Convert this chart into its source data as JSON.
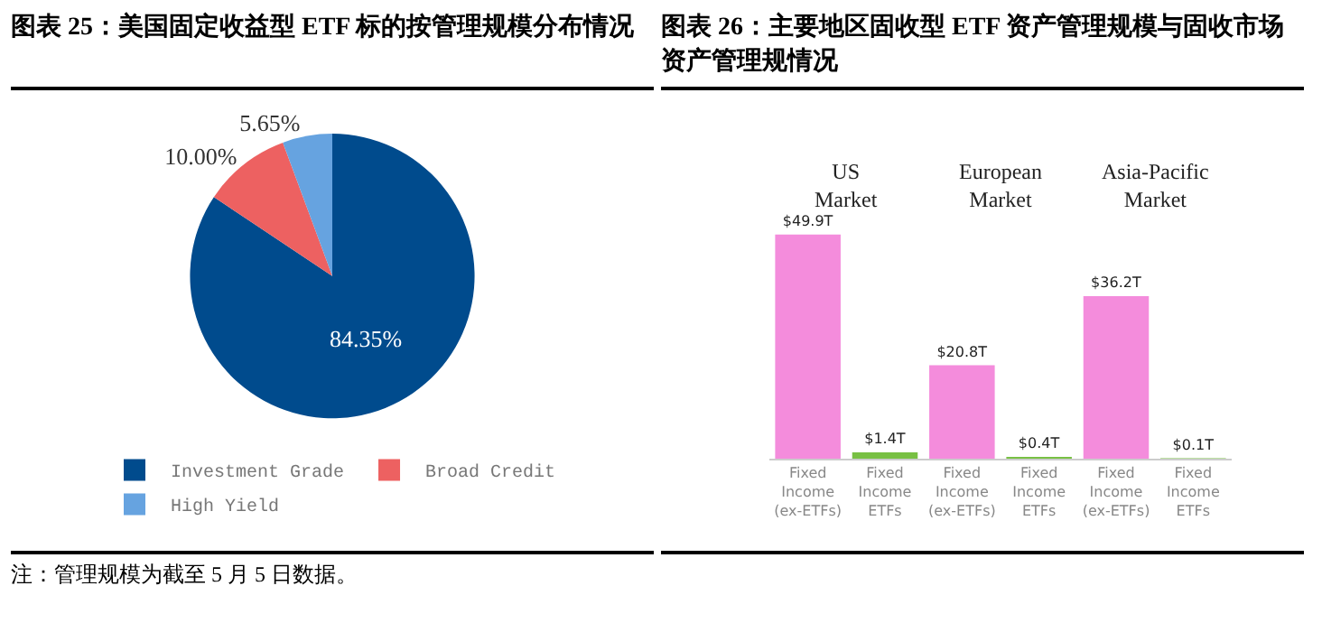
{
  "chart_data": [
    {
      "type": "pie",
      "title": "图表 25：美国固定收益型 ETF 标的按管理规模分布情况",
      "categories": [
        "Investment Grade",
        "Broad Credit",
        "High Yield"
      ],
      "values": [
        84.35,
        10.0,
        5.65
      ],
      "colors": [
        "#004b8d",
        "#ed6161",
        "#66a3e0"
      ],
      "value_labels": [
        "84.35%",
        "10.00%",
        "5.65%"
      ],
      "legend": "bottom",
      "annotations": [
        "注：管理规模为截至 5 月 5 日数据。"
      ]
    },
    {
      "type": "bar",
      "title": "图表 26：主要地区固收型 ETF 资产管理规模与固收市场资产管理规情况",
      "categories": [
        "Fixed Income (ex-ETFs)",
        "Fixed Income ETFs",
        "Fixed Income (ex-ETFs)",
        "Fixed Income ETFs",
        "Fixed Income (ex-ETFs)",
        "Fixed Income ETFs"
      ],
      "values": [
        49.9,
        1.4,
        20.8,
        0.4,
        36.2,
        0.1
      ],
      "colors": [
        "#f48cdc",
        "#78c043",
        "#f48cdc",
        "#78c043",
        "#f48cdc",
        "#78c043"
      ],
      "value_labels": [
        "$49.9T",
        "$1.4T",
        "$20.8T",
        "$0.4T",
        "$36.2T",
        "$0.1T"
      ],
      "tick_labels": "x",
      "annotations": [
        "US Market",
        "European Market",
        "Asia-Pacific Market"
      ]
    }
  ]
}
